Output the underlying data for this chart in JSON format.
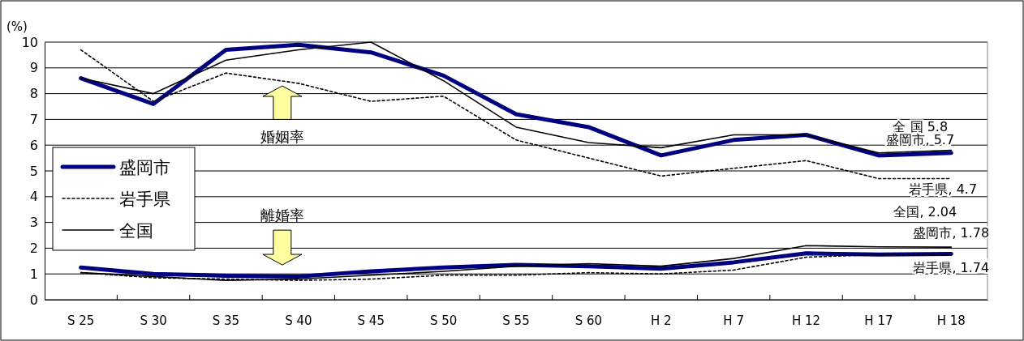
{
  "chart_data": {
    "type": "line",
    "ylabel": "(%)",
    "categories": [
      "S 25",
      "S 30",
      "S 35",
      "S 40",
      "S 45",
      "S 50",
      "S 55",
      "S 60",
      "H 2",
      "H 7",
      "H 12",
      "H 17",
      "H 18"
    ],
    "ylim": [
      0,
      10
    ],
    "yticks": [
      0,
      1,
      2,
      3,
      4,
      5,
      6,
      7,
      8,
      9,
      10
    ],
    "grid": "y",
    "legend": "left",
    "marker": "none",
    "series": [
      {
        "name": "盛岡市",
        "color": "#000080",
        "line_style": "solid",
        "values": [
          8.6,
          7.6,
          9.7,
          9.9,
          9.6,
          8.7,
          7.2,
          6.7,
          5.6,
          6.2,
          6.4,
          5.6,
          5.7
        ]
      },
      {
        "name": "岩手県",
        "color": "#000000",
        "line_style": "dotted",
        "values": [
          9.7,
          7.7,
          8.8,
          8.4,
          7.7,
          7.9,
          6.2,
          5.5,
          4.8,
          5.1,
          5.4,
          4.7,
          4.7
        ]
      },
      {
        "name": "全国",
        "color": "#000000",
        "line_style": "solid",
        "values": [
          8.6,
          8.0,
          9.3,
          9.7,
          10.0,
          8.5,
          6.7,
          6.1,
          5.9,
          6.4,
          6.4,
          5.7,
          5.8
        ]
      },
      {
        "color": "#000080",
        "line_style": "solid",
        "values": [
          1.25,
          1.0,
          0.93,
          0.9,
          1.1,
          1.25,
          1.35,
          1.3,
          1.2,
          1.45,
          1.8,
          1.75,
          1.78
        ]
      },
      {
        "color": "#000000",
        "line_style": "dotted",
        "values": [
          1.05,
          0.85,
          0.8,
          0.75,
          0.8,
          0.95,
          0.95,
          1.05,
          1.0,
          1.15,
          1.65,
          1.75,
          1.74
        ]
      },
      {
        "color": "#000000",
        "line_style": "solid",
        "values": [
          1.05,
          0.9,
          0.75,
          0.8,
          0.95,
          1.1,
          1.3,
          1.4,
          1.3,
          1.6,
          2.1,
          2.05,
          2.04
        ]
      }
    ],
    "annotations": [
      "婚姻率",
      "離婚率",
      {
        "text": "全 国  5.8",
        "x": "H 18",
        "y": 5.8
      },
      {
        "text": "盛岡市, 5.7",
        "x": "H 18",
        "y": 5.7
      },
      {
        "text": "岩手県, 4.7",
        "x": "H 18",
        "y": 4.7
      },
      {
        "text": "全国, 2.04",
        "x": "H 18",
        "y": 2.04
      },
      {
        "text": "盛岡市, 1.78",
        "x": "H 18",
        "y": 1.78
      },
      {
        "text": "岩手県, 1.74",
        "x": "H 18",
        "y": 1.74
      }
    ]
  }
}
